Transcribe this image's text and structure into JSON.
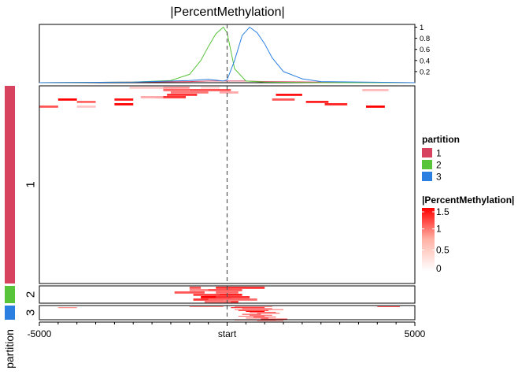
{
  "chart_data": {
    "type": "heatmap",
    "title": "|PercentMethylation|",
    "x_ticks": [
      "-5000",
      "start",
      "5000"
    ],
    "x_range": [
      -5000,
      5000
    ],
    "split_label": "partition",
    "partitions": [
      {
        "label": "1",
        "color": "#d7425f"
      },
      {
        "label": "2",
        "color": "#58c43a"
      },
      {
        "label": "3",
        "color": "#2a7fe0"
      }
    ],
    "profile": {
      "y_ticks": [
        "1",
        "0.8",
        "0.6",
        "0.4",
        "0.2"
      ],
      "y_tick_values": [
        1,
        0.8,
        0.6,
        0.4,
        0.2
      ],
      "ylim": [
        0,
        1.05
      ],
      "series": [
        {
          "name": "1",
          "color": "#d7425f",
          "x": [
            -5000,
            -2500,
            -1000,
            -500,
            0,
            500,
            1000,
            2500,
            5000
          ],
          "y": [
            0.0,
            0.01,
            0.02,
            0.03,
            0.03,
            0.03,
            0.02,
            0.01,
            0.0
          ]
        },
        {
          "name": "2",
          "color": "#58c43a",
          "x": [
            -5000,
            -2500,
            -1500,
            -1000,
            -700,
            -500,
            -300,
            -100,
            0,
            200,
            500,
            1000,
            2500,
            5000
          ],
          "y": [
            0,
            0.01,
            0.04,
            0.15,
            0.4,
            0.65,
            0.88,
            1.0,
            0.9,
            0.25,
            0.03,
            0.01,
            0,
            0
          ]
        },
        {
          "name": "3",
          "color": "#2a7fe0",
          "x": [
            -5000,
            -2500,
            -1000,
            -500,
            -100,
            0,
            200,
            400,
            600,
            800,
            1000,
            1200,
            1500,
            2000,
            2500,
            5000
          ],
          "y": [
            0,
            0.01,
            0.04,
            0.06,
            0.03,
            0.05,
            0.4,
            0.85,
            1.0,
            0.9,
            0.7,
            0.45,
            0.2,
            0.07,
            0.02,
            0
          ]
        }
      ]
    },
    "legend": {
      "partition_title": "partition",
      "color_title": "|PercentMethylation|",
      "color_ticks": [
        "1.5",
        "1",
        "0.5",
        "0"
      ],
      "color_tick_values": [
        1.5,
        1,
        0.5,
        0
      ],
      "color_range": [
        0,
        1.5
      ],
      "color_low": "#ffffff",
      "color_high": "#ff0000"
    },
    "segments": {
      "1": [
        [
          0,
          -1800,
          -1000,
          0.6
        ],
        [
          0,
          -2600,
          -1700,
          0.3
        ],
        [
          0,
          -700,
          -200,
          0.2
        ],
        [
          1,
          -1000,
          100,
          1.0
        ],
        [
          1,
          -1700,
          -1000,
          0.9
        ],
        [
          1,
          3600,
          4300,
          0.4
        ],
        [
          2,
          -1500,
          -500,
          0.8
        ],
        [
          2,
          -200,
          300,
          0.5
        ],
        [
          3,
          -1600,
          -800,
          1.2
        ],
        [
          3,
          1300,
          2000,
          1.4
        ],
        [
          4,
          -1900,
          -1100,
          1.2
        ],
        [
          4,
          -2300,
          -1700,
          0.5
        ],
        [
          5,
          -4500,
          -4000,
          1.5
        ],
        [
          5,
          -3000,
          -2500,
          1.4
        ],
        [
          5,
          1200,
          1800,
          1.0
        ],
        [
          6,
          -4000,
          -3500,
          0.9
        ],
        [
          6,
          2100,
          2700,
          1.3
        ],
        [
          7,
          -3000,
          -2500,
          1.5
        ],
        [
          7,
          2600,
          3200,
          1.3
        ],
        [
          8,
          -5000,
          -4500,
          1.0
        ],
        [
          8,
          -4000,
          -3500,
          0.35
        ],
        [
          8,
          3700,
          4200,
          1.5
        ]
      ],
      "2": [
        [
          0,
          -1000,
          -700,
          1.0
        ],
        [
          0,
          -300,
          1000,
          1.2
        ],
        [
          1,
          -700,
          400,
          1.0
        ],
        [
          1,
          -1000,
          -500,
          0.7
        ],
        [
          2,
          -1400,
          -600,
          1.0
        ],
        [
          2,
          -300,
          300,
          0.9
        ],
        [
          3,
          -600,
          400,
          1.3
        ],
        [
          3,
          -900,
          -200,
          1.1
        ],
        [
          4,
          -700,
          100,
          1.5
        ],
        [
          4,
          -300,
          600,
          1.2
        ],
        [
          5,
          -900,
          -100,
          1.2
        ],
        [
          5,
          -500,
          800,
          0.9
        ],
        [
          6,
          -400,
          300,
          1.1
        ],
        [
          6,
          -600,
          100,
          0.8
        ]
      ],
      "3": [
        [
          0,
          -1000,
          -100,
          0.8
        ],
        [
          0,
          200,
          1200,
          0.7
        ],
        [
          0,
          4000,
          4600,
          1.1
        ],
        [
          1,
          100,
          1000,
          1.4
        ],
        [
          1,
          -4500,
          -4000,
          0.8
        ],
        [
          2,
          400,
          1200,
          1.0
        ],
        [
          3,
          200,
          1500,
          0.9
        ],
        [
          4,
          300,
          1100,
          1.3
        ],
        [
          5,
          500,
          1000,
          1.5
        ],
        [
          6,
          600,
          1300,
          1.1
        ],
        [
          7,
          800,
          1400,
          1.0
        ],
        [
          8,
          400,
          900,
          1.2
        ],
        [
          9,
          600,
          1200,
          1.0
        ],
        [
          10,
          300,
          1000,
          0.9
        ],
        [
          11,
          700,
          1300,
          1.1
        ],
        [
          12,
          500,
          1100,
          1.0
        ],
        [
          13,
          900,
          1600,
          1.2
        ],
        [
          14,
          200,
          1300,
          1.0
        ],
        [
          15,
          800,
          1500,
          0.7
        ]
      ]
    }
  }
}
